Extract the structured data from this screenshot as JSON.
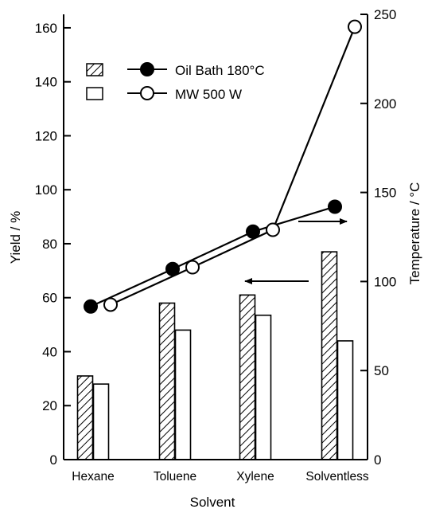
{
  "chart_data": {
    "type": "bar",
    "title": "",
    "xlabel": "Solvent",
    "ylabel": "Yield / %",
    "y2label": "Temperature / °C",
    "categories": [
      "Hexane",
      "Toluene",
      "Xylene",
      "Solventless"
    ],
    "ylim": [
      0,
      165
    ],
    "y2lim": [
      0,
      250
    ],
    "yticks": [
      0,
      20,
      40,
      60,
      80,
      100,
      120,
      140,
      160
    ],
    "y2ticks": [
      0,
      50,
      100,
      150,
      200,
      250
    ],
    "bar_series": [
      {
        "name": "Oil Bath 180°C",
        "axis": "left",
        "pattern": "hatched",
        "values": [
          31,
          58,
          61,
          77
        ]
      },
      {
        "name": "MW 500 W",
        "axis": "left",
        "pattern": "open",
        "values": [
          28,
          48,
          53.5,
          44
        ]
      }
    ],
    "line_series": [
      {
        "name": "Oil Bath 180°C",
        "axis": "right",
        "marker": "filled-circle",
        "values": [
          86,
          107,
          128,
          142
        ]
      },
      {
        "name": "MW 500 W",
        "axis": "right",
        "marker": "open-circle",
        "values": [
          87,
          108,
          129,
          243
        ]
      }
    ],
    "legend": {
      "placement": "top-left",
      "entries": [
        "Oil Bath 180°C",
        "MW 500 W"
      ]
    },
    "grid": false
  }
}
